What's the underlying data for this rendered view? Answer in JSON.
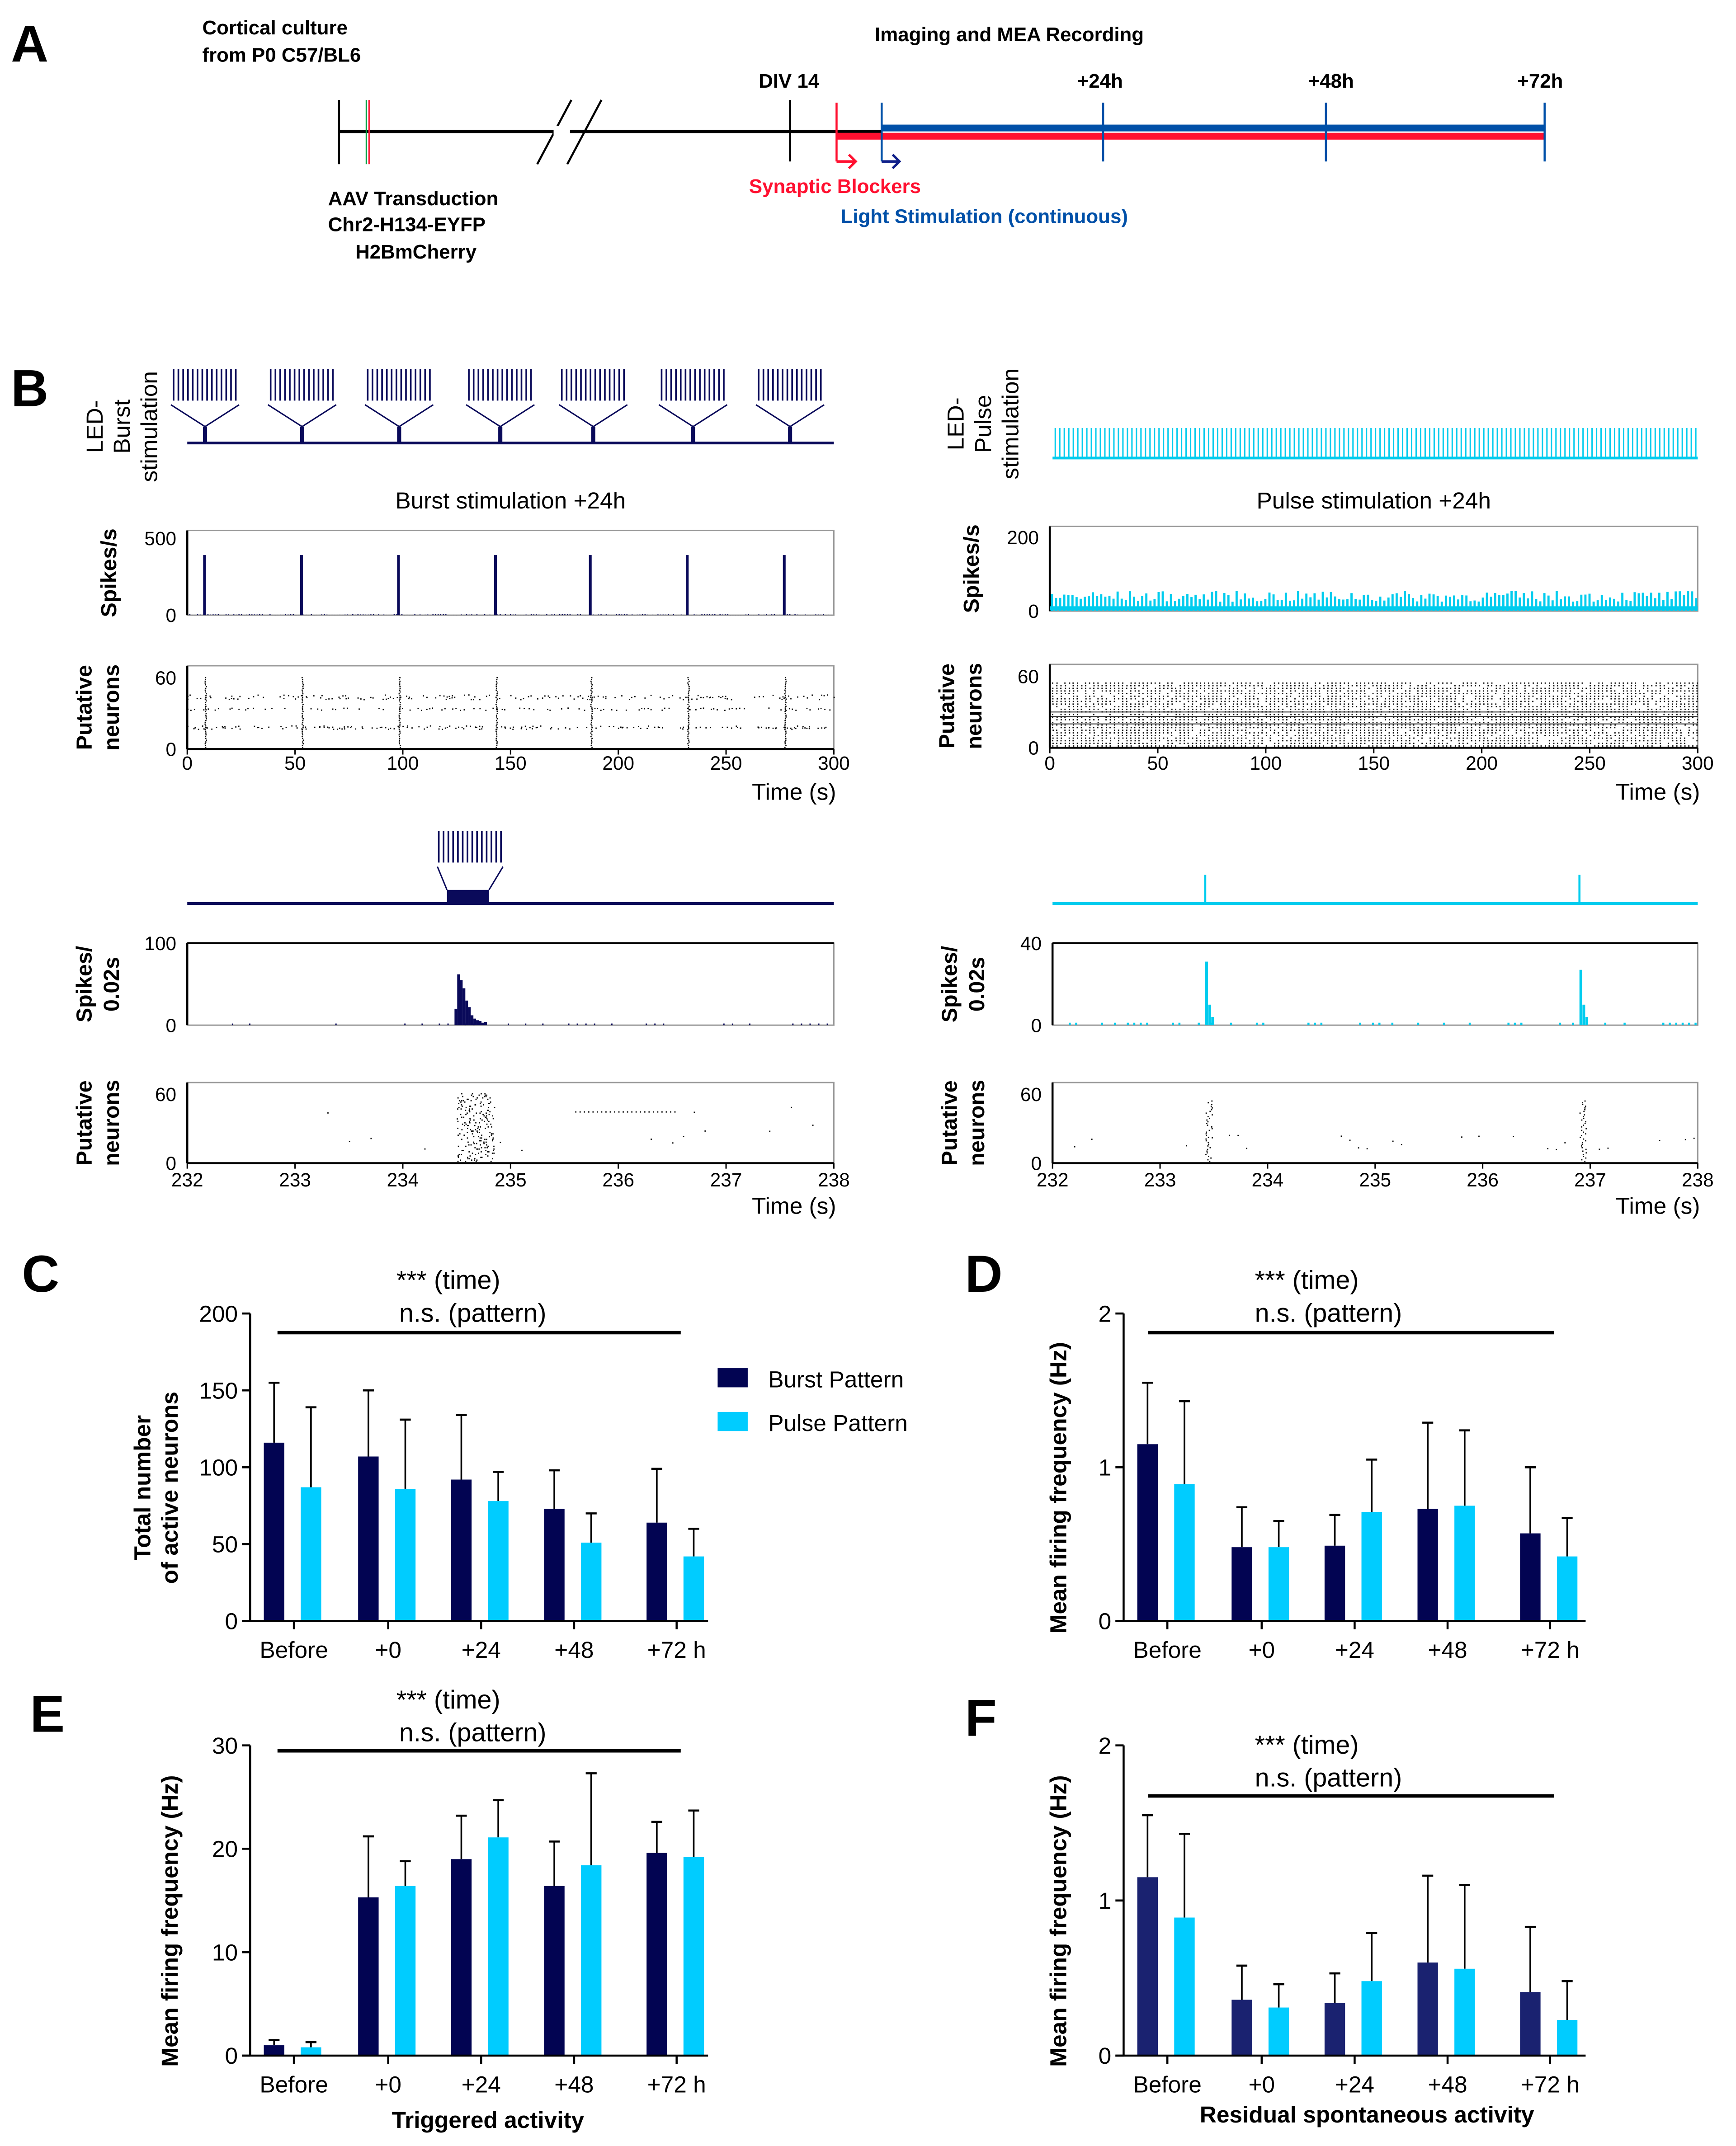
{
  "panel_labels": [
    "A",
    "B",
    "C",
    "D",
    "E",
    "F"
  ],
  "timeline": {
    "culture": [
      "Cortical culture",
      "from P0 C57/BL6"
    ],
    "recording": "Imaging and MEA Recording",
    "div": "DIV 14",
    "hours": [
      "+24h",
      "+48h",
      "+72h"
    ],
    "transduction": [
      "AAV Transduction",
      "Chr2-H134-EYFP",
      "H2BmCherry"
    ],
    "blockers": "Synaptic Blockers",
    "light": "Light Stimulation (continuous)",
    "colors": {
      "blocker": "#ff1030",
      "light": "#0050a8",
      "green": "#00a040"
    }
  },
  "chart_data": [
    {
      "type": "raster-histogram",
      "pattern": "burst",
      "stim_label": [
        "LED-",
        "Burst",
        "stimulation"
      ],
      "title": "Burst stimulation +24h",
      "hist_ylabel": [
        "Spikes/s"
      ],
      "hist_yticks": [
        0,
        500
      ],
      "hist_ylim": [
        0,
        550
      ],
      "raster_ylabel": [
        "Putative",
        "neurons"
      ],
      "raster_yticks": [
        0,
        60
      ],
      "raster_ylim": [
        0,
        70
      ],
      "xticks": [
        0,
        50,
        100,
        150,
        200,
        250,
        300
      ],
      "xlim": [
        0,
        300
      ],
      "xlabel": "Time (s)",
      "burst_times_s": [
        8,
        53,
        98,
        143,
        187,
        232,
        277
      ],
      "peak_spikes_per_s": [
        390,
        390,
        390,
        390,
        390,
        390,
        390
      ],
      "color": "#0a0a5a"
    },
    {
      "type": "raster-histogram",
      "pattern": "pulse",
      "stim_label": [
        "LED-",
        "Pulse",
        "stimulation"
      ],
      "title": "Pulse stimulation +24h",
      "hist_ylabel": [
        "Spikes/s"
      ],
      "hist_yticks": [
        0,
        200
      ],
      "hist_ylim": [
        0,
        230
      ],
      "raster_ylabel": [
        "Putative",
        "neurons"
      ],
      "raster_yticks": [
        0,
        60
      ],
      "raster_ylim": [
        0,
        70
      ],
      "xticks": [
        0,
        50,
        100,
        150,
        200,
        250,
        300
      ],
      "xlim": [
        0,
        300
      ],
      "xlabel": "Time (s)",
      "typical_spikes_per_s": 40,
      "color": "#00ccee"
    },
    {
      "type": "raster-histogram",
      "pattern": "burst-zoom",
      "hist_ylabel": [
        "Spikes/",
        "0.02s"
      ],
      "hist_yticks": [
        0,
        100
      ],
      "hist_ylim": [
        0,
        100
      ],
      "raster_ylabel": [
        "Putative",
        "neurons"
      ],
      "raster_yticks": [
        0,
        60
      ],
      "raster_ylim": [
        0,
        70
      ],
      "xticks": [
        232,
        233,
        234,
        235,
        236,
        237,
        238
      ],
      "xlim": [
        232,
        238
      ],
      "xlabel": "Time (s)",
      "stim_window_s": [
        234.41,
        234.8
      ],
      "peak_spikes_per_bin": 62,
      "color": "#0a0a5a"
    },
    {
      "type": "raster-histogram",
      "pattern": "pulse-zoom",
      "hist_ylabel": [
        "Spikes/",
        "0.02s"
      ],
      "hist_yticks": [
        0,
        40
      ],
      "hist_ylim": [
        0,
        40
      ],
      "raster_ylabel": [
        "Putative",
        "neurons"
      ],
      "raster_yticks": [
        0,
        60
      ],
      "raster_ylim": [
        0,
        70
      ],
      "xticks": [
        232,
        233,
        234,
        235,
        236,
        237,
        238
      ],
      "xlim": [
        232,
        238
      ],
      "xlabel": "Time (s)",
      "pulse_times_s": [
        233.42,
        236.9
      ],
      "peak_spikes_per_bin": [
        31,
        27
      ],
      "color": "#00ccee"
    },
    {
      "type": "bar",
      "panel": "C",
      "categories": [
        "Before",
        "+0",
        "+24",
        "+48",
        "+72 h"
      ],
      "series": [
        {
          "name": "Burst Pattern",
          "color": "#020452",
          "values": [
            116,
            107,
            92,
            73,
            64
          ],
          "error_top": [
            155,
            150,
            134,
            98,
            99
          ]
        },
        {
          "name": "Pulse Pattern",
          "color": "#00ccff",
          "values": [
            87,
            86,
            78,
            51,
            42
          ],
          "error_top": [
            139,
            131,
            97,
            70,
            60
          ]
        }
      ],
      "ylabel": [
        "Total number",
        "of active neurons"
      ],
      "yticks": [
        0,
        50,
        100,
        150,
        200
      ],
      "ylim": [
        0,
        200
      ],
      "annotation": [
        "*** (time)",
        "n.s. (pattern)"
      ],
      "xlabel": "",
      "legend": "right"
    },
    {
      "type": "bar",
      "panel": "D",
      "categories": [
        "Before",
        "+0",
        "+24",
        "+48",
        "+72 h"
      ],
      "series": [
        {
          "name": "Burst Pattern",
          "color": "#020452",
          "values": [
            1.15,
            0.48,
            0.49,
            0.73,
            0.57
          ],
          "error_top": [
            1.55,
            0.74,
            0.69,
            1.29,
            1.0
          ]
        },
        {
          "name": "Pulse Pattern",
          "color": "#00ccff",
          "values": [
            0.89,
            0.48,
            0.71,
            0.75,
            0.42
          ],
          "error_top": [
            1.43,
            0.65,
            1.05,
            1.24,
            0.67
          ]
        }
      ],
      "ylabel": [
        "Mean firing frequency (Hz)"
      ],
      "yticks": [
        0,
        1,
        2
      ],
      "ylim": [
        0,
        2
      ],
      "annotation": [
        "*** (time)",
        "n.s. (pattern)"
      ],
      "xlabel": ""
    },
    {
      "type": "bar",
      "panel": "E",
      "categories": [
        "Before",
        "+0",
        "+24",
        "+48",
        "+72 h"
      ],
      "series": [
        {
          "name": "Burst Pattern",
          "color": "#020452",
          "values": [
            1.0,
            15.3,
            19.0,
            16.4,
            19.6
          ],
          "error_top": [
            1.5,
            21.2,
            23.2,
            20.7,
            22.6
          ]
        },
        {
          "name": "Pulse Pattern",
          "color": "#00ccff",
          "values": [
            0.8,
            16.4,
            21.1,
            18.4,
            19.2
          ],
          "error_top": [
            1.3,
            18.8,
            24.7,
            27.3,
            23.7
          ]
        }
      ],
      "ylabel": [
        "Mean firing frequency (Hz)"
      ],
      "yticks": [
        0,
        10,
        20,
        30
      ],
      "ylim": [
        0,
        30
      ],
      "annotation": [
        "*** (time)",
        "n.s. (pattern)"
      ],
      "xlabel": "Triggered activity"
    },
    {
      "type": "bar",
      "panel": "F",
      "categories": [
        "Before",
        "+0",
        "+24",
        "+48",
        "+72 h"
      ],
      "series": [
        {
          "name": "Burst Pattern",
          "color": "#1a2270",
          "values": [
            1.15,
            0.36,
            0.34,
            0.6,
            0.41
          ],
          "error_top": [
            1.55,
            0.58,
            0.53,
            1.16,
            0.83
          ]
        },
        {
          "name": "Pulse Pattern",
          "color": "#00ccff",
          "values": [
            0.89,
            0.31,
            0.48,
            0.56,
            0.23
          ],
          "error_top": [
            1.43,
            0.46,
            0.79,
            1.1,
            0.48
          ]
        }
      ],
      "ylabel": [
        "Mean firing frequency (Hz)"
      ],
      "yticks": [
        0,
        1,
        2
      ],
      "ylim": [
        0,
        2
      ],
      "annotation": [
        "*** (time)",
        "n.s. (pattern)"
      ],
      "xlabel": "Residual spontaneous activity"
    }
  ]
}
